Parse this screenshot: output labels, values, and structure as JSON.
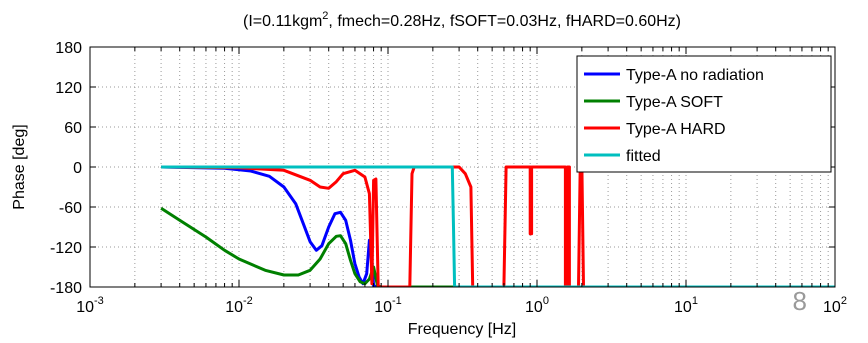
{
  "chart_data": {
    "type": "line",
    "title": {
      "prefix": "(I=0.11kgm",
      "superscript": "2",
      "suffix": ", fmech=0.28Hz, fSOFT=0.03Hz, fHARD=0.60Hz)"
    },
    "xlabel": "Frequency [Hz]",
    "ylabel": "Phase [deg]",
    "xscale": "log",
    "xlim": [
      0.001,
      100
    ],
    "ylim": [
      -180,
      180
    ],
    "xticks": [
      {
        "value": 0.001,
        "base": "10",
        "exp": "-3"
      },
      {
        "value": 0.01,
        "base": "10",
        "exp": "-2"
      },
      {
        "value": 0.1,
        "base": "10",
        "exp": "-1"
      },
      {
        "value": 1,
        "base": "10",
        "exp": "0"
      },
      {
        "value": 10,
        "base": "10",
        "exp": "1"
      },
      {
        "value": 100,
        "base": "10",
        "exp": "2"
      }
    ],
    "yticks": [
      180,
      120,
      60,
      0,
      -60,
      -120,
      -180
    ],
    "ytick_labels": [
      "180",
      "120",
      "60",
      "0",
      "-60",
      "-120",
      "-180"
    ],
    "grid": true,
    "legend": "top-right",
    "series": [
      {
        "name": "Type-A no radiation",
        "color": "#0000ff",
        "x": [
          0.003,
          0.008,
          0.012,
          0.016,
          0.02,
          0.024,
          0.027,
          0.03,
          0.033,
          0.036,
          0.04,
          0.044,
          0.048,
          0.052,
          0.056,
          0.06,
          0.064,
          0.068,
          0.072,
          0.075,
          0.078,
          0.08,
          0.085,
          0.09,
          0.1,
          0.12,
          0.15,
          0.2,
          0.25,
          0.3,
          0.33,
          0.35,
          0.38,
          0.4,
          1,
          10,
          100
        ],
        "y": [
          0,
          -2,
          -6,
          -14,
          -30,
          -55,
          -85,
          -112,
          -125,
          -118,
          -90,
          -70,
          -68,
          -80,
          -110,
          -145,
          -165,
          -175,
          -160,
          -110,
          -140,
          -178,
          -180,
          -180,
          -180,
          -180,
          -180,
          -180,
          -180,
          -180,
          -180,
          -180,
          -180,
          -180,
          -180,
          -180,
          -180
        ]
      },
      {
        "name": "Type-A SOFT",
        "color": "#008000",
        "x": [
          0.003,
          0.004,
          0.006,
          0.008,
          0.01,
          0.015,
          0.02,
          0.025,
          0.03,
          0.035,
          0.04,
          0.045,
          0.048,
          0.052,
          0.056,
          0.06,
          0.065,
          0.07,
          0.075,
          0.08,
          0.085,
          0.09,
          0.1,
          0.2,
          0.3,
          0.4,
          1,
          10,
          100
        ],
        "y": [
          -62,
          -80,
          -105,
          -125,
          -138,
          -155,
          -162,
          -162,
          -155,
          -138,
          -115,
          -104,
          -103,
          -115,
          -140,
          -160,
          -172,
          -175,
          -168,
          -150,
          -178,
          -180,
          -180,
          -180,
          -180,
          -180,
          -180,
          -180,
          -180
        ]
      },
      {
        "name": "Type-A HARD",
        "color": "#ff0000",
        "x": [
          0.003,
          0.01,
          0.02,
          0.03,
          0.035,
          0.04,
          0.045,
          0.05,
          0.06,
          0.07,
          0.075,
          0.078,
          0.08,
          0.083,
          0.086,
          0.09,
          0.1,
          0.12,
          0.14,
          0.145,
          0.15,
          0.16,
          0.2,
          0.25,
          0.3,
          0.33,
          0.36,
          0.37,
          0.38,
          0.4,
          0.5,
          0.6,
          0.62,
          0.65,
          0.9,
          0.9,
          0.92,
          0.92,
          1.0,
          1.4,
          1.55,
          1.55,
          1.58,
          1.6,
          1.65,
          1.65,
          1.8,
          1.9,
          1.95,
          1.95,
          2.0,
          2.05,
          2.1,
          2.15,
          2.15,
          10,
          100
        ],
        "y": [
          0,
          -1,
          -5,
          -20,
          -30,
          -32,
          -22,
          -10,
          -5,
          -15,
          -40,
          -175,
          -20,
          -18,
          -180,
          -180,
          -180,
          -180,
          -180,
          -10,
          0,
          0,
          0,
          0,
          0,
          -10,
          -30,
          -180,
          -180,
          -180,
          -180,
          -180,
          0,
          0,
          0,
          -100,
          -100,
          0,
          0,
          0,
          0,
          -180,
          -180,
          0,
          0,
          -180,
          -180,
          -180,
          0,
          0,
          0,
          -180,
          -180,
          -180,
          -180,
          -180,
          -180
        ]
      },
      {
        "name": "fitted",
        "color": "#00bfbf",
        "x": [
          0.003,
          0.01,
          0.1,
          0.2,
          0.27,
          0.275,
          0.28,
          0.3,
          1,
          10,
          100
        ],
        "y": [
          0,
          0,
          0,
          0,
          0,
          -90,
          -180,
          -180,
          -180,
          -180,
          -180
        ]
      }
    ]
  },
  "page_number": "8"
}
